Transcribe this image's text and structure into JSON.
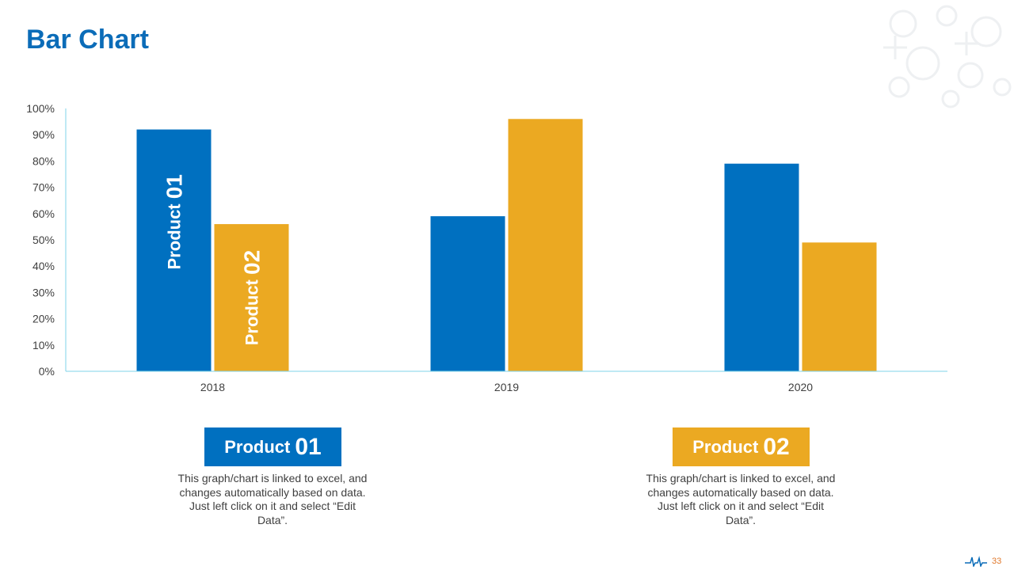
{
  "slide": {
    "title": "Bar Chart",
    "page_number": "33",
    "colors": {
      "title": "#0b6cb8",
      "product01": "#0070c0",
      "product02": "#eba922",
      "axis": "#7fd3e8"
    }
  },
  "chart_data": {
    "type": "bar",
    "title": "",
    "xlabel": "",
    "ylabel": "",
    "categories": [
      "2018",
      "2019",
      "2020"
    ],
    "ylim": [
      0,
      100
    ],
    "yticks": [
      "0%",
      "10%",
      "20%",
      "30%",
      "40%",
      "50%",
      "60%",
      "70%",
      "80%",
      "90%",
      "100%"
    ],
    "series": [
      {
        "name": "Product 01",
        "values": [
          92,
          59,
          79
        ],
        "color": "#0070c0"
      },
      {
        "name": "Product 02",
        "values": [
          56,
          96,
          49
        ],
        "color": "#eba922"
      }
    ],
    "bar_labels": [
      {
        "word": "Product",
        "num": "01"
      },
      {
        "word": "Product",
        "num": "02"
      }
    ]
  },
  "legend": [
    {
      "word": "Product",
      "num": "01",
      "description": "This graph/chart is linked to excel, and changes automatically based on data. Just left click on it and select “Edit Data”."
    },
    {
      "word": "Product",
      "num": "02",
      "description": "This graph/chart is linked to excel, and changes automatically based on data. Just left click on it and select “Edit Data”."
    }
  ]
}
